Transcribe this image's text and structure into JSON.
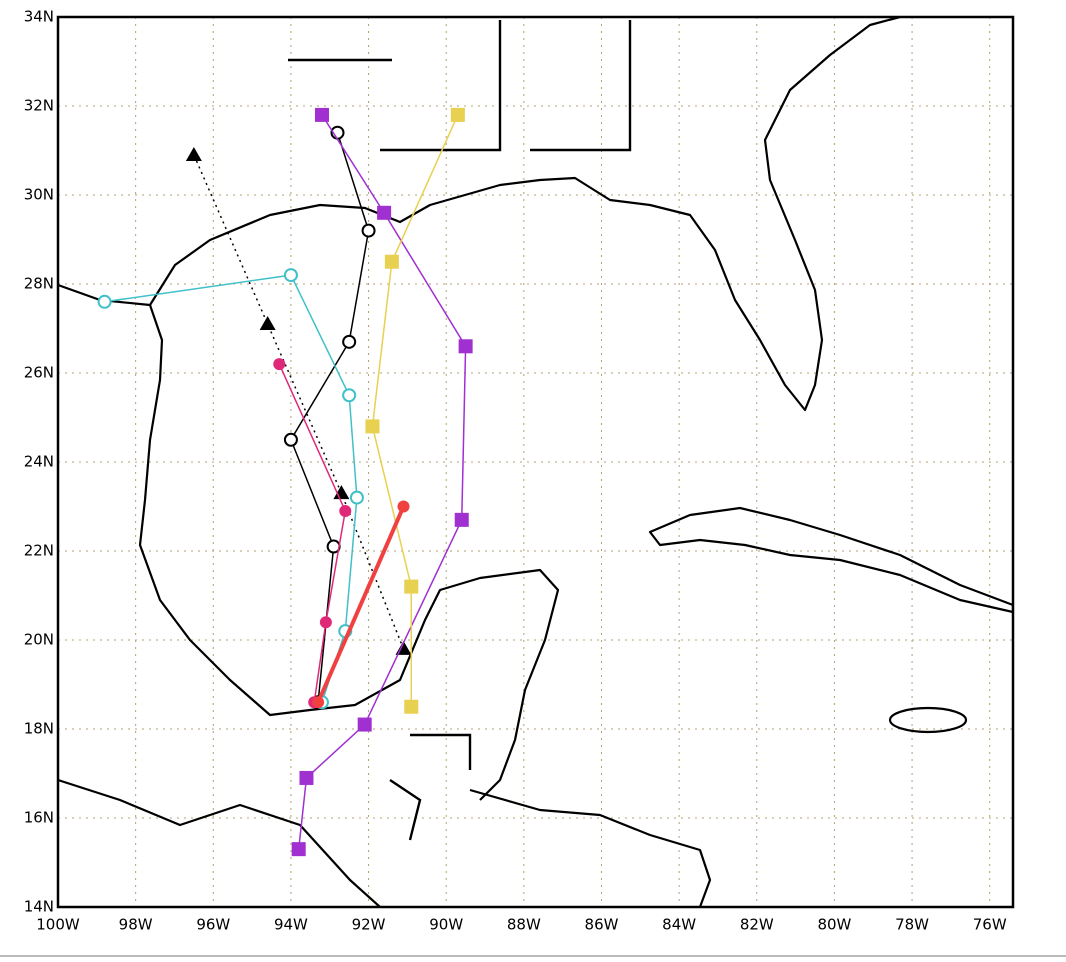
{
  "chart_data": {
    "type": "map",
    "xlim": [
      -100,
      -75.4
    ],
    "ylim": [
      14,
      34
    ],
    "grid": true,
    "xticks": [
      {
        "value": -100,
        "label": "100W"
      },
      {
        "value": -98,
        "label": "98W"
      },
      {
        "value": -96,
        "label": "96W"
      },
      {
        "value": -94,
        "label": "94W"
      },
      {
        "value": -92,
        "label": "92W"
      },
      {
        "value": -90,
        "label": "90W"
      },
      {
        "value": -88,
        "label": "88W"
      },
      {
        "value": -86,
        "label": "86W"
      },
      {
        "value": -84,
        "label": "84W"
      },
      {
        "value": -82,
        "label": "82W"
      },
      {
        "value": -80,
        "label": "80W"
      },
      {
        "value": -78,
        "label": "78W"
      },
      {
        "value": -76,
        "label": "76W"
      }
    ],
    "yticks": [
      {
        "value": 14,
        "label": "14N"
      },
      {
        "value": 16,
        "label": "16N"
      },
      {
        "value": 18,
        "label": "18N"
      },
      {
        "value": 20,
        "label": "20N"
      },
      {
        "value": 22,
        "label": "22N"
      },
      {
        "value": 24,
        "label": "24N"
      },
      {
        "value": 26,
        "label": "26N"
      },
      {
        "value": 28,
        "label": "28N"
      },
      {
        "value": 30,
        "label": "30N"
      },
      {
        "value": 32,
        "label": "32N"
      },
      {
        "value": 34,
        "label": "34N"
      }
    ],
    "series": [
      {
        "color": "#000000",
        "marker": "circle-o",
        "x": [
          -93.3,
          -92.9,
          -94.0,
          -92.5,
          -92.0,
          -92.8
        ],
        "y": [
          18.6,
          22.1,
          24.5,
          26.7,
          29.2,
          31.4
        ]
      },
      {
        "color": "#000000",
        "marker": "triangle",
        "dashed": true,
        "x": [
          -91.1,
          -92.7,
          -94.6,
          -96.5
        ],
        "y": [
          19.8,
          23.3,
          27.1,
          30.9
        ]
      },
      {
        "color": "#40c0c8",
        "marker": "circle-o",
        "x": [
          -93.2,
          -92.6,
          -92.3,
          -92.5,
          -94.0,
          -98.8
        ],
        "y": [
          18.6,
          20.2,
          23.2,
          25.5,
          28.2,
          27.6
        ]
      },
      {
        "color": "#a030d0",
        "marker": "square",
        "x": [
          -93.8,
          -93.6,
          -92.1,
          -89.6,
          -89.5,
          -91.6,
          -93.2
        ],
        "y": [
          15.3,
          16.9,
          18.1,
          22.7,
          26.6,
          29.6,
          31.8
        ]
      },
      {
        "color": "#e8d050",
        "marker": "square",
        "x": [
          -90.9,
          -90.9,
          -91.9,
          -91.4,
          -89.7
        ],
        "y": [
          18.5,
          21.2,
          24.8,
          28.5,
          31.8
        ]
      },
      {
        "color": "#e02878",
        "marker": "circle",
        "x": [
          -93.4,
          -93.1,
          -92.6,
          -94.3
        ],
        "y": [
          18.6,
          20.4,
          22.9,
          26.2
        ]
      },
      {
        "color": "#f04040",
        "marker": "circle",
        "thick": true,
        "x": [
          -93.3,
          -91.1
        ],
        "y": [
          18.6,
          23.0
        ]
      }
    ]
  }
}
